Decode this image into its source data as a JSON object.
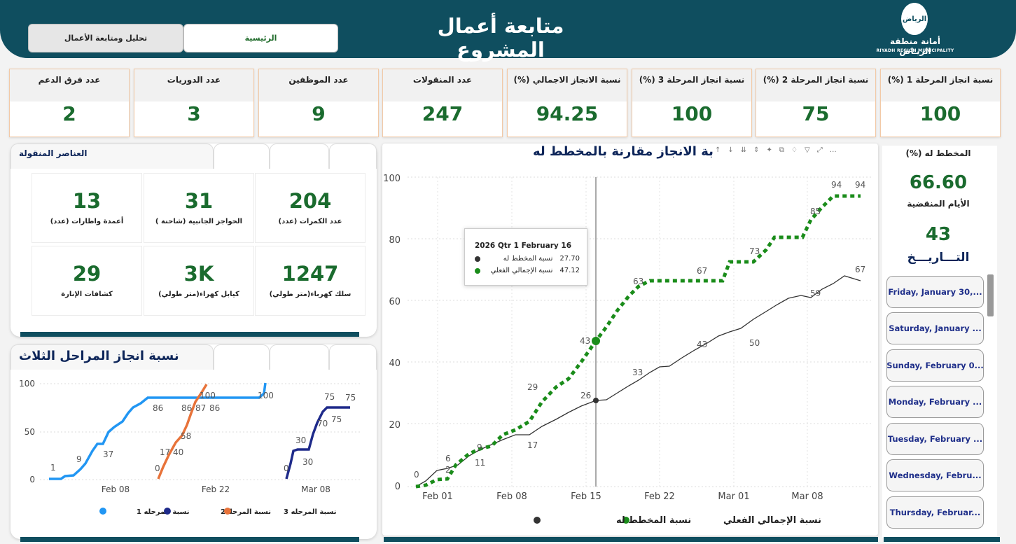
{
  "header": {
    "title": "متابعة أعمال المشروع",
    "nav": {
      "main": "الرئيسية",
      "analysis": "تحليل ومتابعة الأعمال"
    },
    "logo": {
      "emblem": "الرياض",
      "ar": "أمانة منطقة الريـاض",
      "en": "RIYADH REGION MUNICIPALITY"
    }
  },
  "kpis": [
    {
      "label": "عدد فرق الدعم",
      "value": "2"
    },
    {
      "label": "عدد الدوريات",
      "value": "3"
    },
    {
      "label": "عدد الموظفين",
      "value": "9"
    },
    {
      "label": "عدد المنقولات",
      "value": "247"
    },
    {
      "label": "نسبة الانجاز الاجمالي (%)",
      "value": "94.25"
    },
    {
      "label": "نسبة انجاز المرحلة 3 (%)",
      "value": "100"
    },
    {
      "label": "نسبة انجاز المرحلة 2 (%)",
      "value": "75"
    },
    {
      "label": "نسبة انجاز المرحلة 1 (%)",
      "value": "100"
    }
  ],
  "items_panel": {
    "title": "العناصر المنقولة",
    "cells": [
      {
        "value": "204",
        "label": "عدد الكمرات (عدد)"
      },
      {
        "value": "31",
        "label": "الحواجز الجانبية (شاحنة )"
      },
      {
        "value": "13",
        "label": "أعمدة واطارات (عدد)"
      },
      {
        "value": "1247",
        "label": "سلك كهرباء(متر طولي)"
      },
      {
        "value": "3K",
        "label": "كيابل كهراء(متر طولي)"
      },
      {
        "value": "29",
        "label": "كشافات الإنارة"
      }
    ]
  },
  "phases_chart": {
    "title": "نسبة انجاز المراحل الثلاث",
    "legend": [
      "نسبة المرحله 1",
      "نسبة المرحله2",
      "نسبة المرحله 3"
    ],
    "colors": [
      "#2196f3",
      "#1e2a8a",
      "#e8733a"
    ],
    "y_ticks": [
      "0",
      "50",
      "100"
    ],
    "x_ticks": [
      "Feb 08",
      "Feb 22",
      "Mar 08"
    ],
    "labels": [
      "1",
      "9",
      "37",
      "86",
      "100",
      "0",
      "17",
      "40",
      "58",
      "86",
      "87",
      "86",
      "100",
      "0",
      "30",
      "30",
      "70",
      "75",
      "75"
    ]
  },
  "main_chart": {
    "title": "بة الانجاز مقارنة بالمخطط له",
    "legend": {
      "planned": "نسبة المخطط له",
      "actual": "نسبة الإجمالي الفعلي"
    },
    "colors": {
      "planned": "#333333",
      "actual": "#1a8c1a"
    },
    "y_ticks": [
      "0",
      "20",
      "40",
      "60",
      "80",
      "100"
    ],
    "x_ticks": [
      "Feb 01",
      "Feb 08",
      "Feb 15",
      "Feb 22",
      "Mar 01",
      "Mar 08"
    ],
    "planned_labels": [
      "0",
      "2",
      "11",
      "17",
      "26",
      "33",
      "43",
      "50",
      "59",
      "67"
    ],
    "actual_labels": [
      "6",
      "9",
      "29",
      "43",
      "63",
      "67",
      "73",
      "85",
      "94",
      "94"
    ],
    "tooltip": {
      "header": "2026 Qtr 1 February 16",
      "planned_name": "نسبة المخطط له",
      "planned_value": "27.70",
      "actual_name": "نسبة الإجمالي الفعلي",
      "actual_value": "47.12"
    }
  },
  "chart_data": {
    "type": "line",
    "title": "بة الانجاز مقارنة بالمخطط له",
    "ylim": [
      0,
      100
    ],
    "x": [
      "Jan 30",
      "Feb 02",
      "Feb 03",
      "Feb 04",
      "Feb 08",
      "Feb 12",
      "Feb 16",
      "Feb 20",
      "Feb 24",
      "Feb 28",
      "Mar 02",
      "Mar 06",
      "Mar 08",
      "Mar 12"
    ],
    "series": [
      {
        "name": "نسبة المخطط له",
        "values": [
          0,
          6,
          2,
          11,
          17,
          22,
          28,
          33,
          43,
          47,
          50,
          57,
          59,
          67
        ]
      },
      {
        "name": "نسبة الإجمالي الفعلي",
        "values": [
          0,
          2,
          2,
          9,
          29,
          35,
          47,
          63,
          67,
          67,
          73,
          81,
          85,
          94
        ]
      }
    ]
  },
  "right_panel": {
    "planned_label": "المخطط له (%)",
    "planned_value": "66.60",
    "days_label": "الأيام المنقضية",
    "days_value": "43",
    "date_label": "التـــاريـــخ",
    "dates": [
      "Friday, January 30,...",
      "Saturday, January ...",
      "Sunday, February 0...",
      "Monday, February ...",
      "Tuesday, February ...",
      "Wednesday, Febru...",
      "Thursday, Februar..."
    ]
  }
}
